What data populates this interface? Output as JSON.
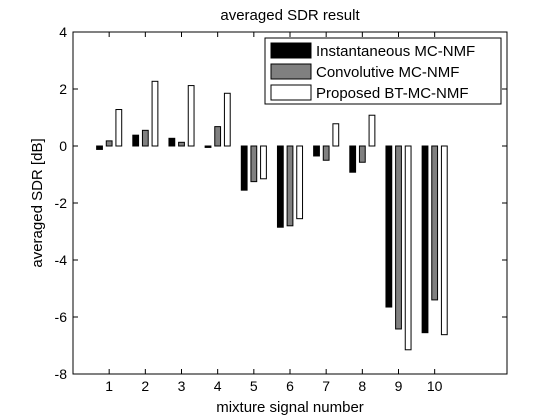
{
  "chart_data": {
    "type": "bar",
    "title": "averaged SDR result",
    "xlabel": "mixture signal number",
    "ylabel": "averaged SDR [dB]",
    "categories": [
      "1",
      "2",
      "3",
      "4",
      "5",
      "6",
      "7",
      "8",
      "9",
      "10"
    ],
    "xlim": [
      0,
      12
    ],
    "ylim": [
      -8,
      4
    ],
    "yticks": [
      -8,
      -6,
      -4,
      -2,
      0,
      2,
      4
    ],
    "grid": false,
    "legend_position": "top-right",
    "series": [
      {
        "name": "Instantaneous MC-NMF",
        "color": "#000000",
        "values": [
          -0.12,
          0.38,
          0.27,
          -0.05,
          -1.55,
          -2.85,
          -0.35,
          -0.92,
          -5.65,
          -6.55
        ]
      },
      {
        "name": "Convolutive MC-NMF",
        "color": "#808080",
        "values": [
          0.18,
          0.55,
          0.13,
          0.68,
          -1.25,
          -2.8,
          -0.5,
          -0.57,
          -6.42,
          -5.4
        ]
      },
      {
        "name": "Proposed BT-MC-NMF",
        "color": "#ffffff",
        "values": [
          1.28,
          2.27,
          2.12,
          1.85,
          -1.15,
          -2.55,
          0.78,
          1.08,
          -7.15,
          -6.62
        ]
      }
    ]
  }
}
